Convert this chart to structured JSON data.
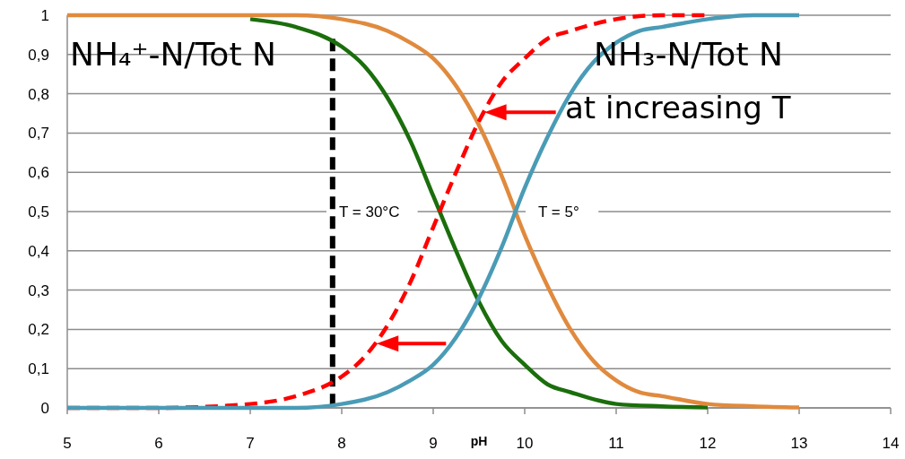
{
  "chart_data": {
    "type": "line",
    "xlabel": "pH",
    "xlim": [
      5,
      14
    ],
    "xticks": [
      5,
      6,
      7,
      8,
      9,
      10,
      11,
      12,
      13,
      14
    ],
    "ylim": [
      0,
      1
    ],
    "yticks": [
      0,
      {
        "value": 0.1,
        "label": "0,1"
      },
      {
        "value": 0.2,
        "label": "0,2"
      },
      {
        "value": 0.3,
        "label": "0,3"
      },
      {
        "value": 0.4,
        "label": "0,4"
      },
      {
        "value": 0.5,
        "label": "0,5"
      },
      {
        "value": 0.6,
        "label": "0,6"
      },
      {
        "value": 0.7,
        "label": "0,7"
      },
      {
        "value": 0.8,
        "label": "0,8"
      },
      {
        "value": 0.9,
        "label": "0,9"
      },
      1
    ],
    "grid": "y",
    "marker": "none",
    "series": [
      {
        "color": "#1b6e0c",
        "line_style": "solid",
        "x": [
          7,
          7.5,
          8,
          8.25,
          8.5,
          8.75,
          9,
          9.25,
          9.5,
          9.75,
          10,
          10.25,
          10.5,
          11,
          11.5,
          12
        ],
        "values": [
          0.99,
          0.97,
          0.92,
          0.87,
          0.79,
          0.68,
          0.54,
          0.4,
          0.27,
          0.17,
          0.11,
          0.06,
          0.04,
          0.01,
          0.004,
          0.001
        ]
      },
      {
        "color": "#e08a3e",
        "line_style": "solid",
        "x": [
          5,
          6,
          7,
          7.5,
          8,
          8.5,
          8.75,
          9,
          9.25,
          9.5,
          9.75,
          10,
          10.25,
          10.5,
          10.75,
          11,
          11.25,
          11.5,
          12,
          12.5,
          13
        ],
        "values": [
          1,
          1,
          1,
          1,
          0.99,
          0.96,
          0.93,
          0.89,
          0.82,
          0.72,
          0.59,
          0.44,
          0.31,
          0.2,
          0.12,
          0.07,
          0.04,
          0.03,
          0.01,
          0.004,
          0.001
        ]
      },
      {
        "color": "#ff0000",
        "line_style": "dashed",
        "x": [
          5,
          6,
          7,
          7.5,
          8,
          8.25,
          8.5,
          8.75,
          9,
          9.25,
          9.5,
          9.75,
          10,
          10.25,
          10.5,
          11,
          11.5,
          12
        ],
        "values": [
          0,
          0,
          0.01,
          0.03,
          0.08,
          0.13,
          0.21,
          0.32,
          0.46,
          0.6,
          0.73,
          0.83,
          0.89,
          0.94,
          0.96,
          0.99,
          1,
          1
        ]
      },
      {
        "color": "#4a9bb6",
        "line_style": "solid",
        "x": [
          5,
          6,
          7,
          7.5,
          8,
          8.5,
          8.75,
          9,
          9.25,
          9.5,
          9.75,
          10,
          10.25,
          10.5,
          10.75,
          11,
          11.25,
          11.5,
          12,
          12.5,
          13
        ],
        "values": [
          0,
          0,
          0,
          0,
          0.01,
          0.04,
          0.07,
          0.11,
          0.18,
          0.28,
          0.41,
          0.56,
          0.69,
          0.8,
          0.88,
          0.93,
          0.96,
          0.97,
          0.99,
          1,
          1
        ]
      }
    ],
    "ref_lines": [
      {
        "axis": "x",
        "value": 7.9,
        "label": null,
        "color": "#000000",
        "line_style": "dashed"
      }
    ],
    "annotations": [
      "NH₄⁺-N/Tot N",
      "NH₃-N/Tot N",
      "at increasing T",
      "T = 30°C",
      "T = 5°"
    ]
  }
}
